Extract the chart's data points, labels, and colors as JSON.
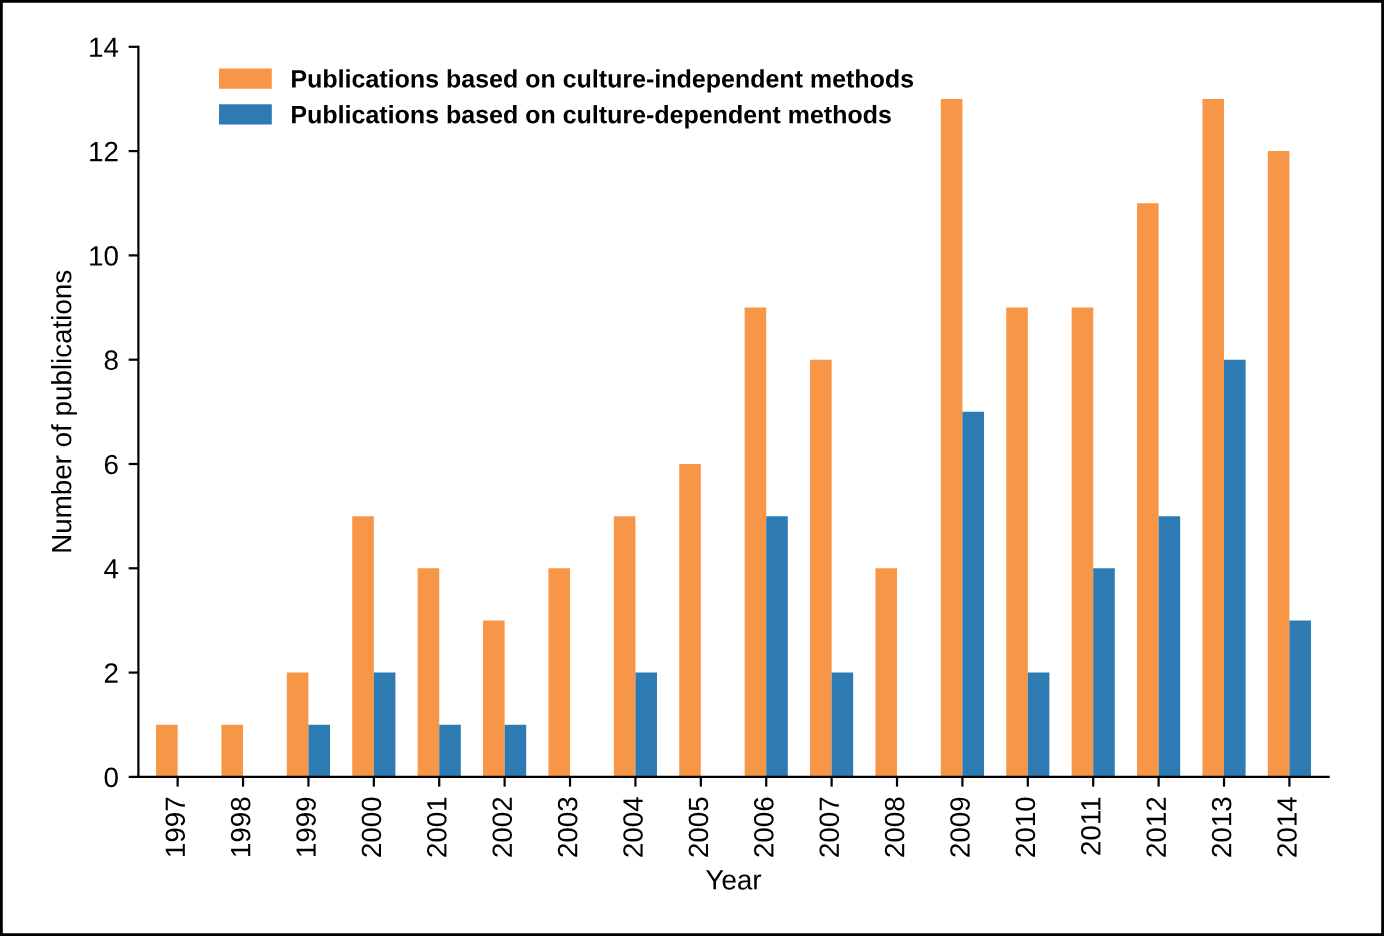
{
  "chart_data": {
    "type": "bar",
    "xlabel": "Year",
    "ylabel": "Number of publications",
    "categories": [
      "1997",
      "1998",
      "1999",
      "2000",
      "2001",
      "2002",
      "2003",
      "2004",
      "2005",
      "2006",
      "2007",
      "2008",
      "2009",
      "2010",
      "2011",
      "2012",
      "2013",
      "2014"
    ],
    "series": [
      {
        "name": "Publications based on culture-independent methods",
        "color": "#f79646",
        "values": [
          1,
          1,
          2,
          5,
          4,
          3,
          4,
          5,
          6,
          9,
          8,
          4,
          13,
          9,
          9,
          11,
          13,
          12
        ]
      },
      {
        "name": "Publications based on culture-dependent methods",
        "color": "#2e7bb4",
        "values": [
          0,
          0,
          1,
          2,
          1,
          1,
          0,
          2,
          0,
          5,
          2,
          0,
          7,
          2,
          4,
          5,
          8,
          3
        ]
      }
    ],
    "ylim": [
      0,
      14
    ],
    "yticks": [
      0,
      2,
      4,
      6,
      8,
      10,
      12,
      14
    ],
    "grid": false,
    "legend": "top left"
  }
}
